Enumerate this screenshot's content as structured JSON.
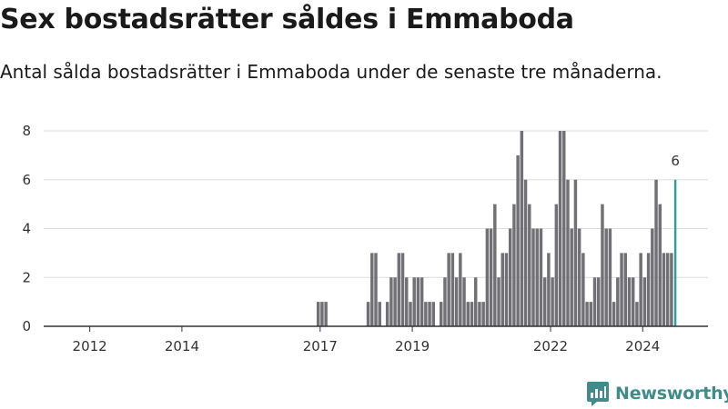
{
  "header": {
    "title": "Sex bostadsrätter såldes i Emmaboda",
    "subtitle": "Antal sålda bostadsrätter i Emmaboda under de senaste tre månaderna."
  },
  "brand": {
    "name": "Newsworthy",
    "icon": "newsworthy-logo-icon"
  },
  "colors": {
    "bar": "#717175",
    "highlight": "#2aa198",
    "grid": "#dddddd",
    "axis": "#333333",
    "brand": "#3f8c8a"
  },
  "chart_data": {
    "type": "bar",
    "title": "Sex bostadsrätter såldes i Emmaboda",
    "subtitle": "Antal sålda bostadsrätter i Emmaboda under de senaste tre månaderna.",
    "xlabel": "",
    "ylabel": "",
    "x_range": [
      "2011-01",
      "2025-06"
    ],
    "ylim": [
      0,
      8
    ],
    "yticks": [
      0,
      2,
      4,
      6,
      8
    ],
    "xticks": [
      {
        "label": "2012",
        "at": "2012-01"
      },
      {
        "label": "2014",
        "at": "2014-01"
      },
      {
        "label": "2017",
        "at": "2017-01"
      },
      {
        "label": "2019",
        "at": "2019-01"
      },
      {
        "label": "2022",
        "at": "2022-01"
      },
      {
        "label": "2024",
        "at": "2024-01"
      }
    ],
    "grid": true,
    "bars": [
      {
        "x": "2016-12",
        "value": 1
      },
      {
        "x": "2017-01",
        "value": 1
      },
      {
        "x": "2017-02",
        "value": 1
      },
      {
        "x": "2018-01",
        "value": 1
      },
      {
        "x": "2018-02",
        "value": 3
      },
      {
        "x": "2018-03",
        "value": 3
      },
      {
        "x": "2018-04",
        "value": 1
      },
      {
        "x": "2018-06",
        "value": 1
      },
      {
        "x": "2018-07",
        "value": 2
      },
      {
        "x": "2018-08",
        "value": 2
      },
      {
        "x": "2018-09",
        "value": 3
      },
      {
        "x": "2018-10",
        "value": 3
      },
      {
        "x": "2018-11",
        "value": 2
      },
      {
        "x": "2018-12",
        "value": 1
      },
      {
        "x": "2019-01",
        "value": 2
      },
      {
        "x": "2019-02",
        "value": 2
      },
      {
        "x": "2019-03",
        "value": 2
      },
      {
        "x": "2019-04",
        "value": 1
      },
      {
        "x": "2019-05",
        "value": 1
      },
      {
        "x": "2019-06",
        "value": 1
      },
      {
        "x": "2019-08",
        "value": 1
      },
      {
        "x": "2019-09",
        "value": 2
      },
      {
        "x": "2019-10",
        "value": 3
      },
      {
        "x": "2019-11",
        "value": 3
      },
      {
        "x": "2019-12",
        "value": 2
      },
      {
        "x": "2020-01",
        "value": 3
      },
      {
        "x": "2020-02",
        "value": 2
      },
      {
        "x": "2020-03",
        "value": 1
      },
      {
        "x": "2020-04",
        "value": 1
      },
      {
        "x": "2020-05",
        "value": 2
      },
      {
        "x": "2020-06",
        "value": 1
      },
      {
        "x": "2020-07",
        "value": 1
      },
      {
        "x": "2020-08",
        "value": 4
      },
      {
        "x": "2020-09",
        "value": 4
      },
      {
        "x": "2020-10",
        "value": 5
      },
      {
        "x": "2020-11",
        "value": 2
      },
      {
        "x": "2020-12",
        "value": 3
      },
      {
        "x": "2021-01",
        "value": 3
      },
      {
        "x": "2021-02",
        "value": 4
      },
      {
        "x": "2021-03",
        "value": 5
      },
      {
        "x": "2021-04",
        "value": 7
      },
      {
        "x": "2021-05",
        "value": 8
      },
      {
        "x": "2021-06",
        "value": 6
      },
      {
        "x": "2021-07",
        "value": 5
      },
      {
        "x": "2021-08",
        "value": 4
      },
      {
        "x": "2021-09",
        "value": 4
      },
      {
        "x": "2021-10",
        "value": 4
      },
      {
        "x": "2021-11",
        "value": 2
      },
      {
        "x": "2021-12",
        "value": 3
      },
      {
        "x": "2022-01",
        "value": 2
      },
      {
        "x": "2022-02",
        "value": 5
      },
      {
        "x": "2022-03",
        "value": 8
      },
      {
        "x": "2022-04",
        "value": 8
      },
      {
        "x": "2022-05",
        "value": 6
      },
      {
        "x": "2022-06",
        "value": 4
      },
      {
        "x": "2022-07",
        "value": 6
      },
      {
        "x": "2022-08",
        "value": 4
      },
      {
        "x": "2022-09",
        "value": 3
      },
      {
        "x": "2022-10",
        "value": 1
      },
      {
        "x": "2022-11",
        "value": 1
      },
      {
        "x": "2022-12",
        "value": 2
      },
      {
        "x": "2023-01",
        "value": 2
      },
      {
        "x": "2023-02",
        "value": 5
      },
      {
        "x": "2023-03",
        "value": 4
      },
      {
        "x": "2023-04",
        "value": 4
      },
      {
        "x": "2023-05",
        "value": 1
      },
      {
        "x": "2023-06",
        "value": 2
      },
      {
        "x": "2023-07",
        "value": 3
      },
      {
        "x": "2023-08",
        "value": 3
      },
      {
        "x": "2023-09",
        "value": 2
      },
      {
        "x": "2023-10",
        "value": 2
      },
      {
        "x": "2023-11",
        "value": 1
      },
      {
        "x": "2023-12",
        "value": 3
      },
      {
        "x": "2024-01",
        "value": 2
      },
      {
        "x": "2024-02",
        "value": 3
      },
      {
        "x": "2024-03",
        "value": 4
      },
      {
        "x": "2024-04",
        "value": 6
      },
      {
        "x": "2024-05",
        "value": 5
      },
      {
        "x": "2024-06",
        "value": 3
      },
      {
        "x": "2024-07",
        "value": 3
      },
      {
        "x": "2024-08",
        "value": 3
      },
      {
        "x": "2024-09",
        "value": 6,
        "highlight": true,
        "label": "6"
      }
    ]
  }
}
